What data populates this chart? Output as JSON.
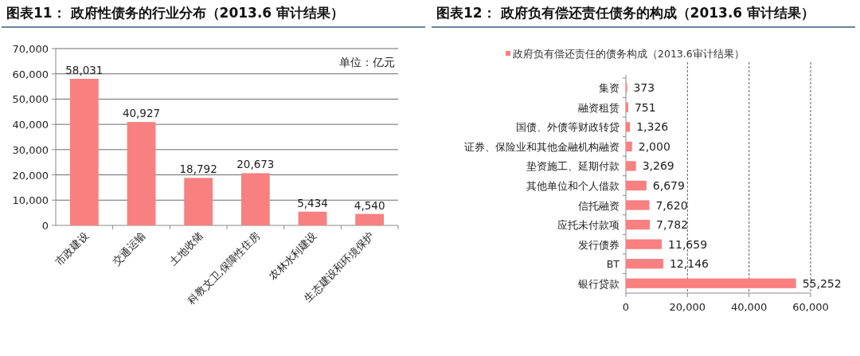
{
  "chart_data": [
    {
      "type": "bar",
      "title": "图表11：  政府性债务的行业分布（2013.6 审计结果）",
      "categories": [
        "市政建设",
        "交通运输",
        "土地收储",
        "科教文卫,保障性住房",
        "农林水利建设",
        "生态建设和环境保护"
      ],
      "series": [
        {
          "color": "#f98080",
          "values": [
            58031,
            40927,
            18792,
            20673,
            5434,
            4540
          ],
          "value_labels": [
            "58,031",
            "40,927",
            "18,792",
            "20,673",
            "5,434",
            "4,540"
          ]
        }
      ],
      "ylim": [
        0,
        70000
      ],
      "yticks": [
        0,
        {
          "value": 10000,
          "label": "10,000"
        },
        {
          "value": 20000,
          "label": "20,000"
        },
        {
          "value": 30000,
          "label": "30,000"
        },
        {
          "value": 40000,
          "label": "40,000"
        },
        {
          "value": 50000,
          "label": "50,000"
        },
        {
          "value": 60000,
          "label": "60,000"
        },
        {
          "value": 70000,
          "label": "70,000"
        }
      ],
      "grid": "y",
      "legend": false,
      "annotations": [
        "单位：亿元"
      ]
    },
    {
      "type": "bar",
      "orientation": "horizontal",
      "title": "图表12：  政府负有偿还责任债务的构成（2013.6 审计结果）",
      "categories": [
        "集资",
        "融资租赁",
        "国债、外债等财政转贷",
        "证券、保险业和其他金融机构融资",
        "垫资施工、延期付款",
        "其他单位和个人借款",
        "信托融资",
        "应托未付款项",
        "发行债券",
        "BT",
        "银行贷款"
      ],
      "series": [
        {
          "name": "政府负有偿还责任的债务构成（2013.6审计结果）",
          "color": "#f98080",
          "values": [
            373,
            751,
            1326,
            2000,
            3269,
            6679,
            7620,
            7782,
            11659,
            12146,
            55252
          ],
          "value_labels": [
            "373",
            "751",
            "1,326",
            "2,000",
            "3,269",
            "6,679",
            "7,620",
            "7,782",
            "11,659",
            "12,146",
            "55,252"
          ]
        }
      ],
      "xlim": [
        0,
        60000
      ],
      "xticks": [
        0,
        {
          "value": 20000,
          "label": "20,000"
        },
        {
          "value": 40000,
          "label": "40,000"
        },
        {
          "value": 60000,
          "label": "60,000"
        }
      ],
      "grid": "x",
      "legend": "top"
    }
  ]
}
